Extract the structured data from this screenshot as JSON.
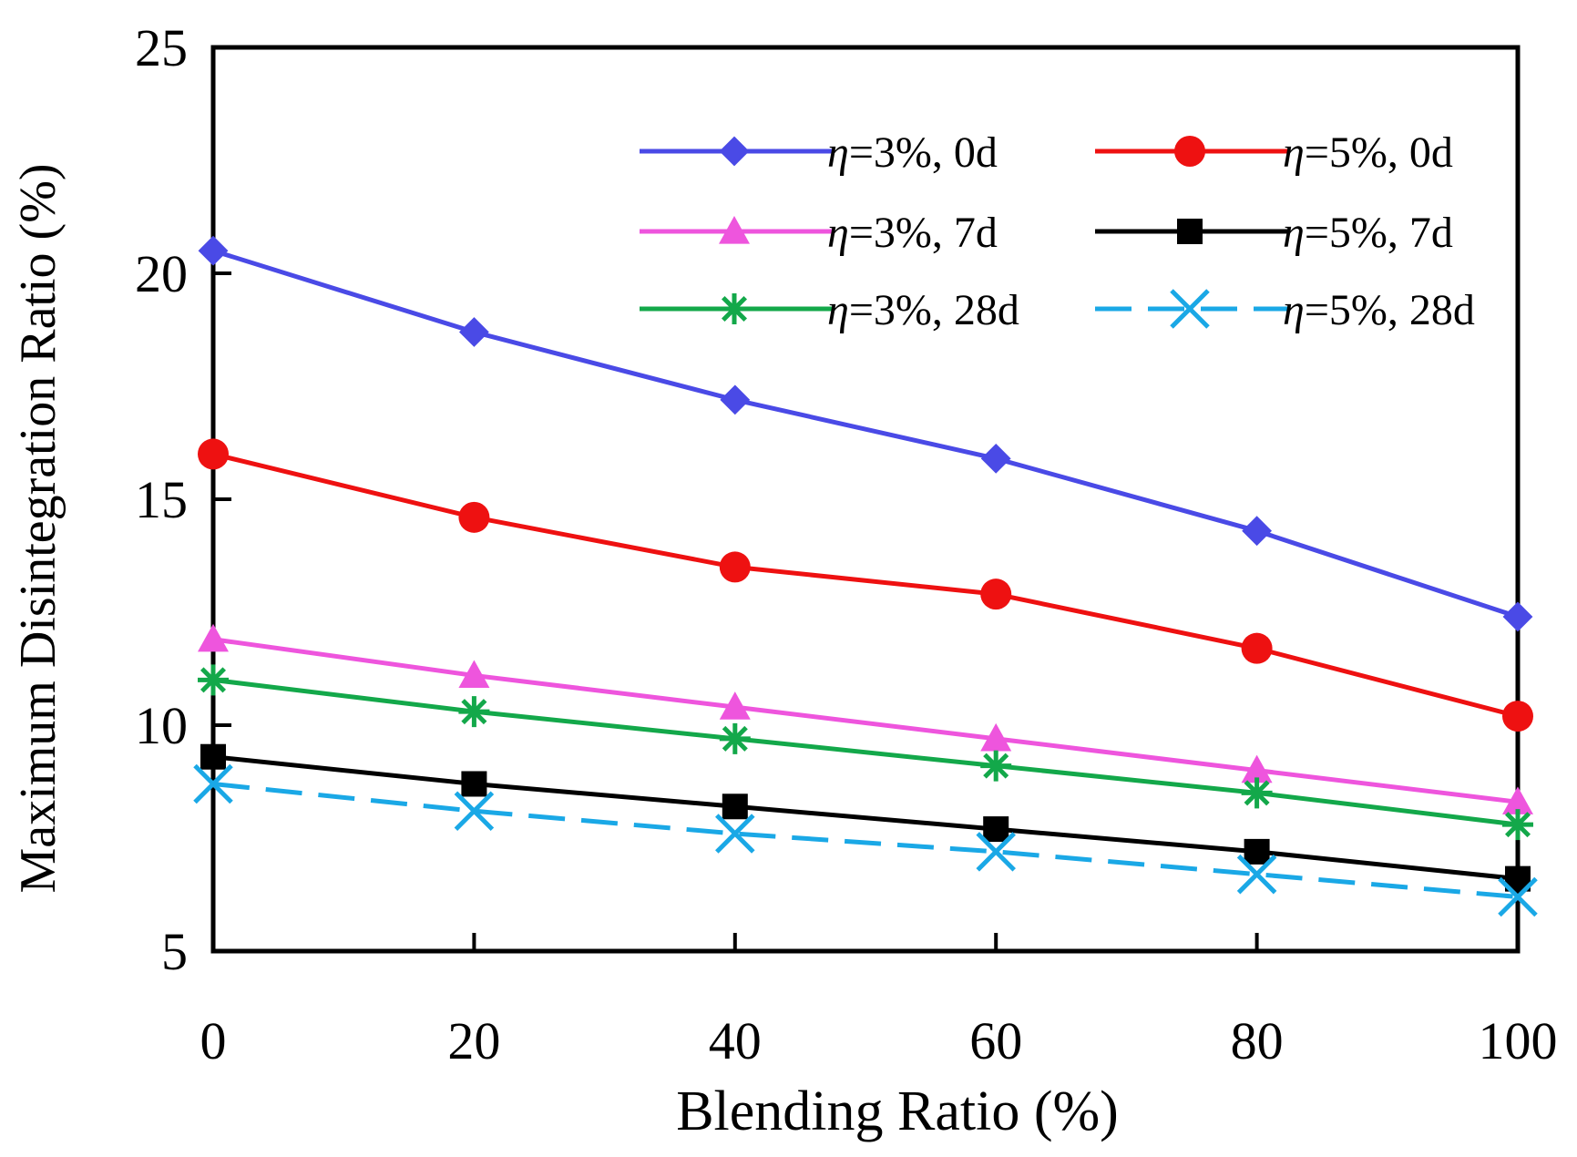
{
  "chart_data": {
    "type": "line",
    "title": "",
    "xlabel": "Blending Ratio (%)",
    "ylabel": "Maximum Disintegration Ratio (%)",
    "x": [
      0,
      20,
      40,
      60,
      80,
      100
    ],
    "xlim": [
      0,
      100
    ],
    "ylim": [
      5,
      25
    ],
    "xticks": [
      0,
      20,
      40,
      60,
      80,
      100
    ],
    "yticks": [
      5,
      10,
      15,
      20,
      25
    ],
    "grid": false,
    "legend_position": "top-right",
    "series": [
      {
        "name": "η=3%, 0d",
        "eta": "η",
        "rest": "=3%, 0d",
        "values": [
          20.5,
          18.7,
          17.2,
          15.9,
          14.3,
          12.4
        ],
        "color": "#4a4ae6",
        "marker": "diamond",
        "dash": "solid"
      },
      {
        "name": "η=5%, 0d",
        "eta": "η",
        "rest": "=5%, 0d",
        "values": [
          16.0,
          14.6,
          13.5,
          12.9,
          11.7,
          10.2
        ],
        "color": "#ee1111",
        "marker": "circle",
        "dash": "solid"
      },
      {
        "name": "η=3%, 7d",
        "eta": "η",
        "rest": "=3%, 7d",
        "values": [
          11.9,
          11.1,
          10.4,
          9.7,
          9.0,
          8.3
        ],
        "color": "#ee55dd",
        "marker": "triangle",
        "dash": "solid"
      },
      {
        "name": "η=5%, 7d",
        "eta": "η",
        "rest": "=5%, 7d",
        "values": [
          9.3,
          8.7,
          8.2,
          7.7,
          7.2,
          6.6
        ],
        "color": "#000000",
        "marker": "square",
        "dash": "solid"
      },
      {
        "name": "η=3%, 28d",
        "eta": "η",
        "rest": "=3%, 28d",
        "values": [
          11.0,
          10.3,
          9.7,
          9.1,
          8.5,
          7.8
        ],
        "color": "#13a84a",
        "marker": "asterisk",
        "dash": "solid"
      },
      {
        "name": "η=5%, 28d",
        "eta": "η",
        "rest": "=5%, 28d",
        "values": [
          8.7,
          8.1,
          7.6,
          7.2,
          6.7,
          6.2
        ],
        "color": "#1aa8e6",
        "marker": "x",
        "dash": "dashed"
      }
    ]
  }
}
